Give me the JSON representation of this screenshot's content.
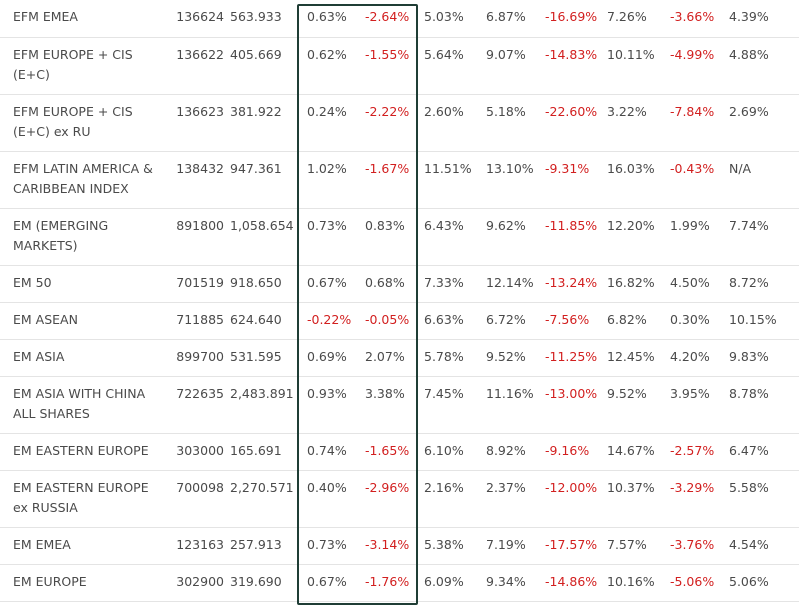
{
  "colors": {
    "negative": "#d21f1f",
    "text": "#4a4a4a",
    "highlight": "#1f3d35"
  },
  "rows": [
    {
      "name": "EFM EMEA",
      "code": "136624",
      "level": "563.933",
      "c1": "0.63%",
      "c2": "-2.64%",
      "c3": "5.03%",
      "c4": "6.87%",
      "c5": "-16.69%",
      "c6": "7.26%",
      "c7": "-3.66%",
      "c8": "4.39%"
    },
    {
      "name": "EFM EUROPE + CIS (E+C)",
      "code": "136622",
      "level": "405.669",
      "c1": "0.62%",
      "c2": "-1.55%",
      "c3": "5.64%",
      "c4": "9.07%",
      "c5": "-14.83%",
      "c6": "10.11%",
      "c7": "-4.99%",
      "c8": "4.88%"
    },
    {
      "name": "EFM EUROPE + CIS (E+C) ex RU",
      "code": "136623",
      "level": "381.922",
      "c1": "0.24%",
      "c2": "-2.22%",
      "c3": "2.60%",
      "c4": "5.18%",
      "c5": "-22.60%",
      "c6": "3.22%",
      "c7": "-7.84%",
      "c8": "2.69%"
    },
    {
      "name": "EFM LATIN AMERICA & CARIBBEAN INDEX",
      "code": "138432",
      "level": "947.361",
      "c1": "1.02%",
      "c2": "-1.67%",
      "c3": "11.51%",
      "c4": "13.10%",
      "c5": "-9.31%",
      "c6": "16.03%",
      "c7": "-0.43%",
      "c8": "N/A"
    },
    {
      "name": "EM (EMERGING MARKETS)",
      "code": "891800",
      "level": "1,058.654",
      "c1": "0.73%",
      "c2": "0.83%",
      "c3": "6.43%",
      "c4": "9.62%",
      "c5": "-11.85%",
      "c6": "12.20%",
      "c7": "1.99%",
      "c8": "7.74%"
    },
    {
      "name": "EM 50",
      "code": "701519",
      "level": "918.650",
      "c1": "0.67%",
      "c2": "0.68%",
      "c3": "7.33%",
      "c4": "12.14%",
      "c5": "-13.24%",
      "c6": "16.82%",
      "c7": "4.50%",
      "c8": "8.72%"
    },
    {
      "name": "EM ASEAN",
      "code": "711885",
      "level": "624.640",
      "c1": "-0.22%",
      "c2": "-0.05%",
      "c3": "6.63%",
      "c4": "6.72%",
      "c5": "-7.56%",
      "c6": "6.82%",
      "c7": "0.30%",
      "c8": "10.15%"
    },
    {
      "name": "EM ASIA",
      "code": "899700",
      "level": "531.595",
      "c1": "0.69%",
      "c2": "2.07%",
      "c3": "5.78%",
      "c4": "9.52%",
      "c5": "-11.25%",
      "c6": "12.45%",
      "c7": "4.20%",
      "c8": "9.83%"
    },
    {
      "name": "EM ASIA WITH CHINA ALL SHARES",
      "code": "722635",
      "level": "2,483.891",
      "c1": "0.93%",
      "c2": "3.38%",
      "c3": "7.45%",
      "c4": "11.16%",
      "c5": "-13.00%",
      "c6": "9.52%",
      "c7": "3.95%",
      "c8": "8.78%"
    },
    {
      "name": "EM EASTERN EUROPE",
      "code": "303000",
      "level": "165.691",
      "c1": "0.74%",
      "c2": "-1.65%",
      "c3": "6.10%",
      "c4": "8.92%",
      "c5": "-9.16%",
      "c6": "14.67%",
      "c7": "-2.57%",
      "c8": "6.47%"
    },
    {
      "name": "EM EASTERN EUROPE ex RUSSIA",
      "code": "700098",
      "level": "2,270.571",
      "c1": "0.40%",
      "c2": "-2.96%",
      "c3": "2.16%",
      "c4": "2.37%",
      "c5": "-12.00%",
      "c6": "10.37%",
      "c7": "-3.29%",
      "c8": "5.58%"
    },
    {
      "name": "EM EMEA",
      "code": "123163",
      "level": "257.913",
      "c1": "0.73%",
      "c2": "-3.14%",
      "c3": "5.38%",
      "c4": "7.19%",
      "c5": "-17.57%",
      "c6": "7.57%",
      "c7": "-3.76%",
      "c8": "4.54%"
    },
    {
      "name": "EM EUROPE",
      "code": "302900",
      "level": "319.690",
      "c1": "0.67%",
      "c2": "-1.76%",
      "c3": "6.09%",
      "c4": "9.34%",
      "c5": "-14.86%",
      "c6": "10.16%",
      "c7": "-5.06%",
      "c8": "5.06%"
    }
  ]
}
